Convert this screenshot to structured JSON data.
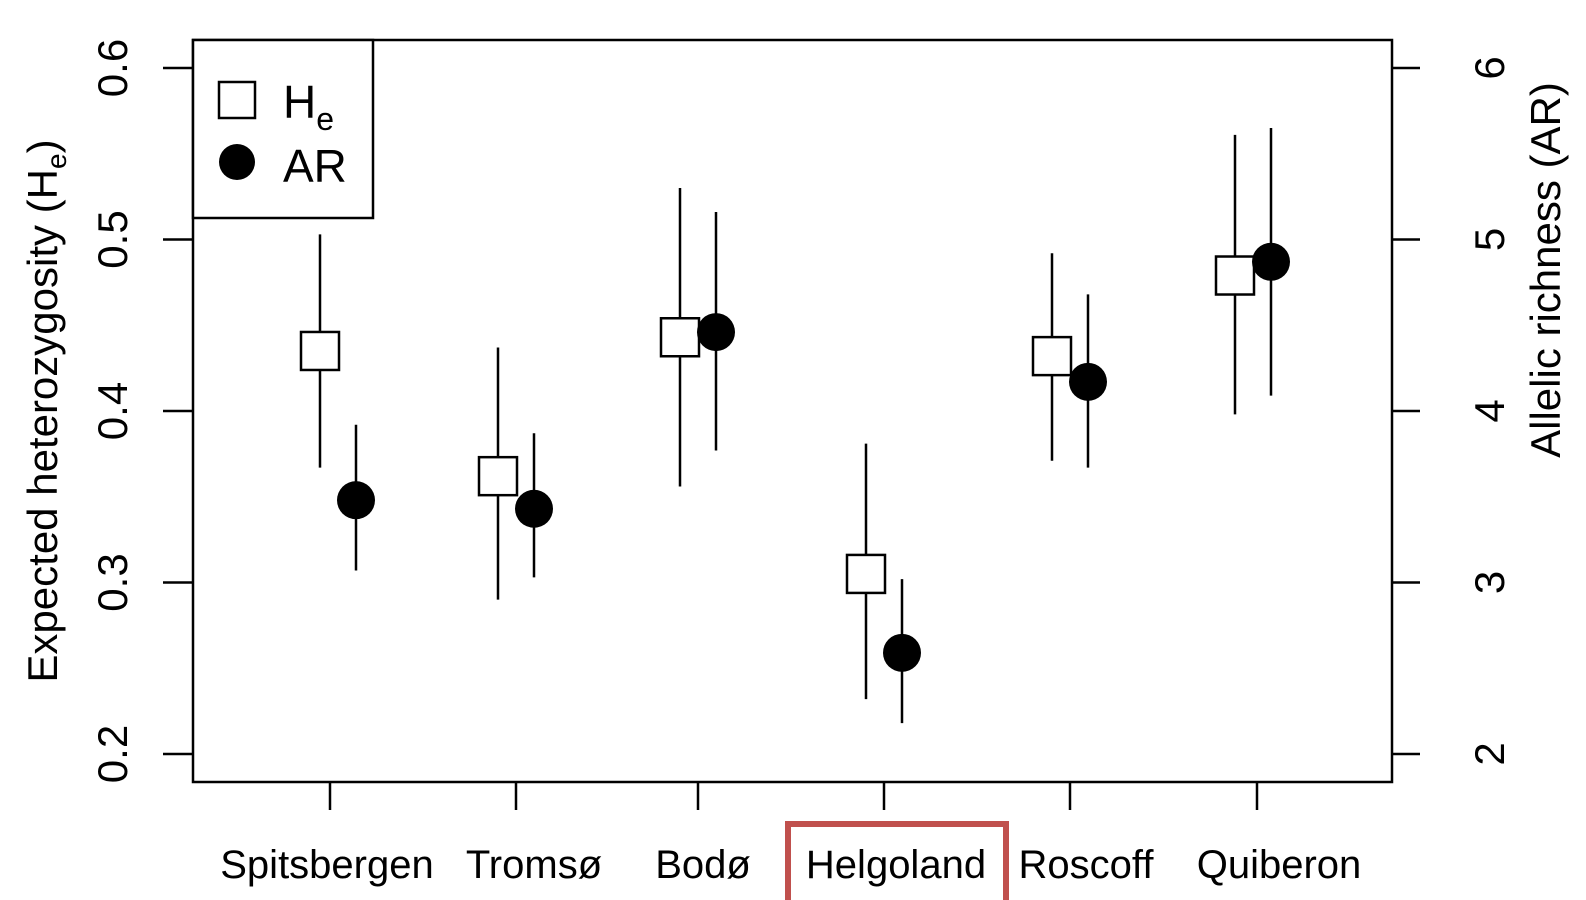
{
  "chart_data": {
    "type": "scatter",
    "categories": [
      "Spitsbergen",
      "Tromsø",
      "Bodø",
      "Helgoland",
      "Roscoff",
      "Quiberon"
    ],
    "highlighted_category": "Helgoland",
    "highlight_color": "#c0504d",
    "y_left": {
      "label_prefix": "Expected heterozygosity (H",
      "label_sub": "e",
      "label_suffix": ")",
      "lim": [
        0.2,
        0.6
      ],
      "ticks": [
        "0.2",
        "0.3",
        "0.4",
        "0.5",
        "0.6"
      ]
    },
    "y_right": {
      "label": "Allelic richness (AR)",
      "lim": [
        2,
        6
      ],
      "ticks": [
        "2",
        "3",
        "4",
        "5",
        "6"
      ]
    },
    "legend": {
      "position": "top-left",
      "he_main": "H",
      "he_sub": "e",
      "ar": "AR"
    },
    "series": [
      {
        "name": "He",
        "axis": "left",
        "marker": "open-square",
        "values": [
          0.435,
          0.362,
          0.443,
          0.305,
          0.432,
          0.479
        ],
        "lower": [
          0.367,
          0.29,
          0.356,
          0.232,
          0.371,
          0.398
        ],
        "upper": [
          0.503,
          0.437,
          0.53,
          0.381,
          0.492,
          0.561
        ]
      },
      {
        "name": "AR",
        "axis": "right",
        "marker": "filled-circle",
        "values": [
          3.48,
          3.43,
          4.46,
          2.59,
          4.17,
          4.87
        ],
        "lower": [
          3.07,
          3.03,
          3.77,
          2.18,
          3.67,
          4.09
        ],
        "upper": [
          3.92,
          3.87,
          5.16,
          3.02,
          4.68,
          5.65
        ]
      }
    ]
  }
}
